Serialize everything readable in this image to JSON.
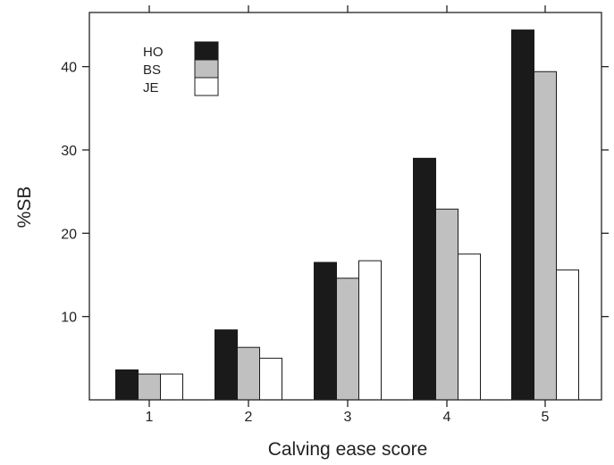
{
  "chart_data": {
    "type": "bar",
    "title": "",
    "xlabel": "Calving ease score",
    "ylabel": "%SB",
    "categories": [
      "1",
      "2",
      "3",
      "4",
      "5"
    ],
    "series": [
      {
        "name": "HO",
        "color": "#1a1a1a",
        "values": [
          3.6,
          8.4,
          16.5,
          29.0,
          44.4
        ]
      },
      {
        "name": "BS",
        "color": "#c0c0c0",
        "values": [
          3.1,
          6.3,
          14.6,
          22.9,
          39.4
        ]
      },
      {
        "name": "JE",
        "color": "#ffffff",
        "values": [
          3.1,
          5.0,
          16.7,
          17.5,
          15.6
        ]
      }
    ],
    "yticks": [
      10,
      20,
      30,
      40
    ],
    "ylim": [
      0,
      46.5
    ],
    "grid": false,
    "legend_position": "top-left"
  }
}
